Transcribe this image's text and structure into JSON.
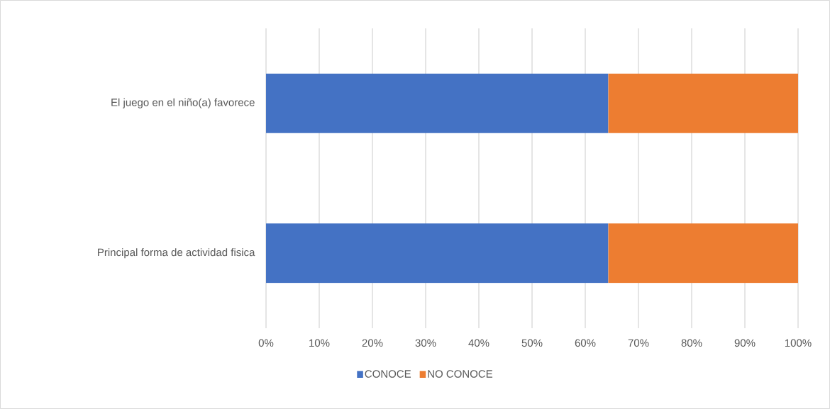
{
  "chart_data": {
    "type": "bar",
    "orientation": "horizontal",
    "stacked": true,
    "categories": [
      "El juego en el niño(a) favorece",
      "Principal forma de actividad fisica"
    ],
    "series": [
      {
        "name": "CONOCE",
        "color": "#4472c4",
        "values": [
          64.3,
          64.3
        ]
      },
      {
        "name": "NO CONOCE",
        "color": "#ed7d31",
        "values": [
          35.7,
          35.7
        ]
      }
    ],
    "xlim": [
      0,
      100
    ],
    "xticks": [
      {
        "value": 0,
        "label": "0%"
      },
      {
        "value": 10,
        "label": "10%"
      },
      {
        "value": 20,
        "label": "20%"
      },
      {
        "value": 30,
        "label": "30%"
      },
      {
        "value": 40,
        "label": "40%"
      },
      {
        "value": 50,
        "label": "50%"
      },
      {
        "value": 60,
        "label": "60%"
      },
      {
        "value": 70,
        "label": "70%"
      },
      {
        "value": 80,
        "label": "80%"
      },
      {
        "value": 90,
        "label": "90%"
      },
      {
        "value": 100,
        "label": "100%"
      }
    ],
    "grid": "x",
    "legend": "bottom"
  }
}
